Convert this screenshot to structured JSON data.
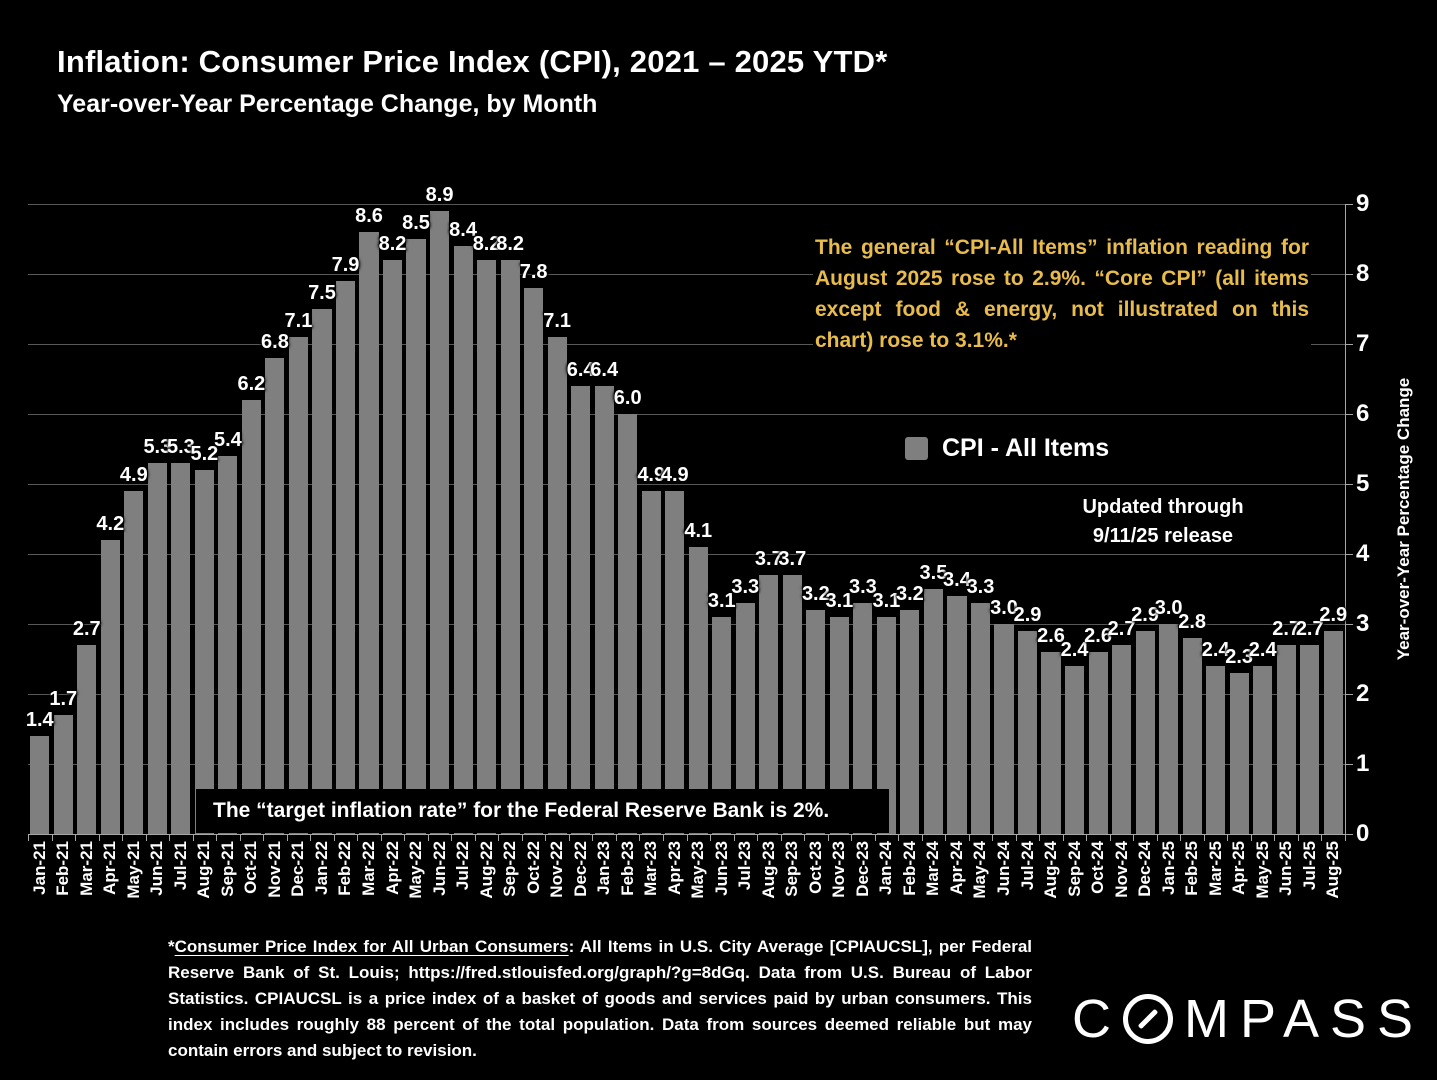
{
  "slide": {
    "title": "Inflation: Consumer Price Index (CPI), 2021 – 2025 YTD*",
    "subtitle": "Year-over-Year Percentage Change, by Month"
  },
  "annotation": {
    "text": "The general “CPI-All Items” inflation reading for August 2025 rose to 2.9%. “Core CPI” (all items except food & energy, not illustrated on this chart) rose to 3.1%.*"
  },
  "legend": {
    "label": "CPI - All Items",
    "swatch_color": "#7f7f7f"
  },
  "updated": {
    "line1": "Updated through",
    "line2": "9/11/25 release"
  },
  "target_note": "The “target inflation rate” for the Federal Reserve Bank is 2%.",
  "footnote": {
    "prefix": "*",
    "underlined": "Consumer Price Index for All Urban Consumers",
    "rest": ": All Items in U.S. City Average [CPIAUCSL], per Federal Reserve Bank of St. Louis; https://fred.stlouisfed.org/graph/?g=8dGq. Data from U.S. Bureau of Labor Statistics. CPIAUCSL is a price index of a basket of goods and services paid by urban consumers. This index includes roughly 88 percent of the total population. Data from sources deemed reliable but may contain errors and subject to revision."
  },
  "logo": {
    "pre": "C",
    "post": "MPASS"
  },
  "colors": {
    "background": "#000000",
    "bar": "#7f7f7f",
    "accent_gold": "#e8bc4c",
    "gridline": "#595959",
    "axis": "#a6a6a6",
    "text": "#ffffff"
  },
  "chart_data": {
    "type": "bar",
    "title": "Inflation: Consumer Price Index (CPI), 2021 – 2025 YTD*",
    "subtitle": "Year-over-Year Percentage Change, by Month",
    "xlabel": "",
    "ylabel": "Year-over-Year Percentage Change",
    "ylim": [
      0,
      9
    ],
    "yticks": [
      0,
      1,
      2,
      3,
      4,
      5,
      6,
      7,
      8,
      9
    ],
    "grid": true,
    "legend_position": "center-right",
    "series_name": "CPI - All Items",
    "categories": [
      "Jan-21",
      "Feb-21",
      "Mar-21",
      "Apr-21",
      "May-21",
      "Jun-21",
      "Jul-21",
      "Aug-21",
      "Sep-21",
      "Oct-21",
      "Nov-21",
      "Dec-21",
      "Jan-22",
      "Feb-22",
      "Mar-22",
      "Apr-22",
      "May-22",
      "Jun-22",
      "Jul-22",
      "Aug-22",
      "Sep-22",
      "Oct-22",
      "Nov-22",
      "Dec-22",
      "Jan-23",
      "Feb-23",
      "Mar-23",
      "Apr-23",
      "May-23",
      "Jun-23",
      "Jul-23",
      "Aug-23",
      "Sep-23",
      "Oct-23",
      "Nov-23",
      "Dec-23",
      "Jan-24",
      "Feb-24",
      "Mar-24",
      "Apr-24",
      "May-24",
      "Jun-24",
      "Jul-24",
      "Aug-24",
      "Sep-24",
      "Oct-24",
      "Nov-24",
      "Dec-24",
      "Jan-25",
      "Feb-25",
      "Mar-25",
      "Apr-25",
      "May-25",
      "Jun-25",
      "Jul-25",
      "Aug-25"
    ],
    "values": [
      1.4,
      1.7,
      2.7,
      4.2,
      4.9,
      5.3,
      5.3,
      5.2,
      5.4,
      6.2,
      6.8,
      7.1,
      7.5,
      7.9,
      8.6,
      8.2,
      8.5,
      8.9,
      8.4,
      8.2,
      8.2,
      7.8,
      7.1,
      6.4,
      6.4,
      6.0,
      4.9,
      4.9,
      4.1,
      3.1,
      3.3,
      3.7,
      3.7,
      3.2,
      3.1,
      3.3,
      3.1,
      3.2,
      3.5,
      3.4,
      3.3,
      3.0,
      2.9,
      2.6,
      2.4,
      2.6,
      2.7,
      2.9,
      3.0,
      2.8,
      2.4,
      2.3,
      2.4,
      2.7,
      2.7,
      2.9
    ]
  }
}
